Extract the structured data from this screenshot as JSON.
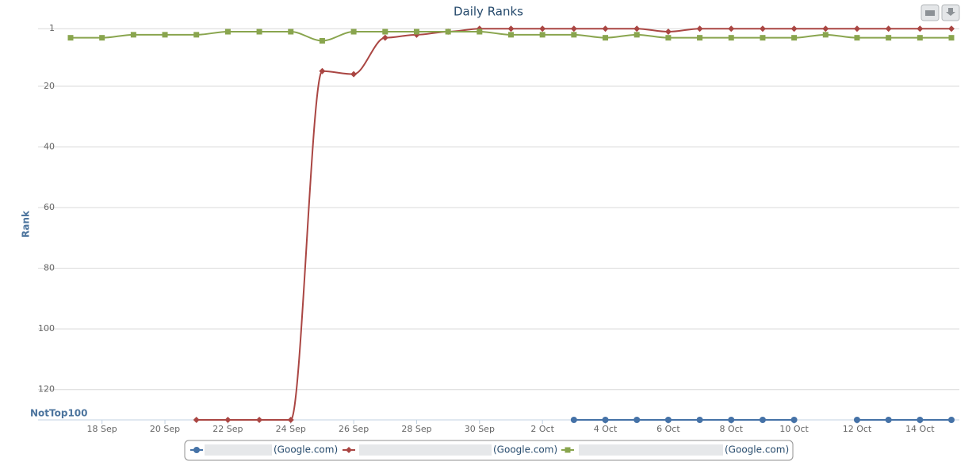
{
  "chart_data": {
    "type": "line",
    "title": "Daily Ranks",
    "y_label": "Rank",
    "y_reversed": true,
    "grid": true,
    "categories": [
      null,
      "18 Sep",
      null,
      "20 Sep",
      null,
      "22 Sep",
      null,
      "24 Sep",
      null,
      "26 Sep",
      null,
      "28 Sep",
      null,
      "30 Sep",
      null,
      "2 Oct",
      null,
      "4 Oct",
      null,
      "6 Oct",
      null,
      "8 Oct",
      null,
      "10 Oct",
      null,
      "12 Oct",
      null,
      "14 Oct",
      null
    ],
    "ylim": [
      1,
      130
    ],
    "yticks": [
      1,
      20,
      40,
      60,
      80,
      100,
      120,
      {
        "value": 130,
        "label": "NotTop100"
      }
    ],
    "series": [
      {
        "name": "(Google.com)",
        "color": "#4572a7",
        "marker": "circle",
        "values": [
          null,
          null,
          null,
          null,
          null,
          null,
          null,
          null,
          null,
          null,
          null,
          null,
          null,
          null,
          null,
          null,
          130,
          130,
          130,
          130,
          130,
          130,
          130,
          130,
          null,
          130,
          130,
          130,
          130
        ]
      },
      {
        "name": "(Google.com)",
        "color": "#aa4643",
        "marker": "diamond",
        "values": [
          null,
          null,
          null,
          null,
          130,
          130,
          130,
          130,
          15,
          16,
          4,
          3,
          2,
          1,
          1,
          1,
          1,
          1,
          1,
          2,
          1,
          1,
          1,
          1,
          1,
          1,
          1,
          1,
          1
        ]
      },
      {
        "name": "(Google.com)",
        "color": "#89a54e",
        "marker": "square",
        "values": [
          4,
          4,
          3,
          3,
          3,
          2,
          2,
          2,
          5,
          2,
          2,
          2,
          2,
          2,
          3,
          3,
          3,
          4,
          3,
          4,
          4,
          4,
          4,
          4,
          3,
          4,
          4,
          4,
          4
        ]
      }
    ]
  }
}
